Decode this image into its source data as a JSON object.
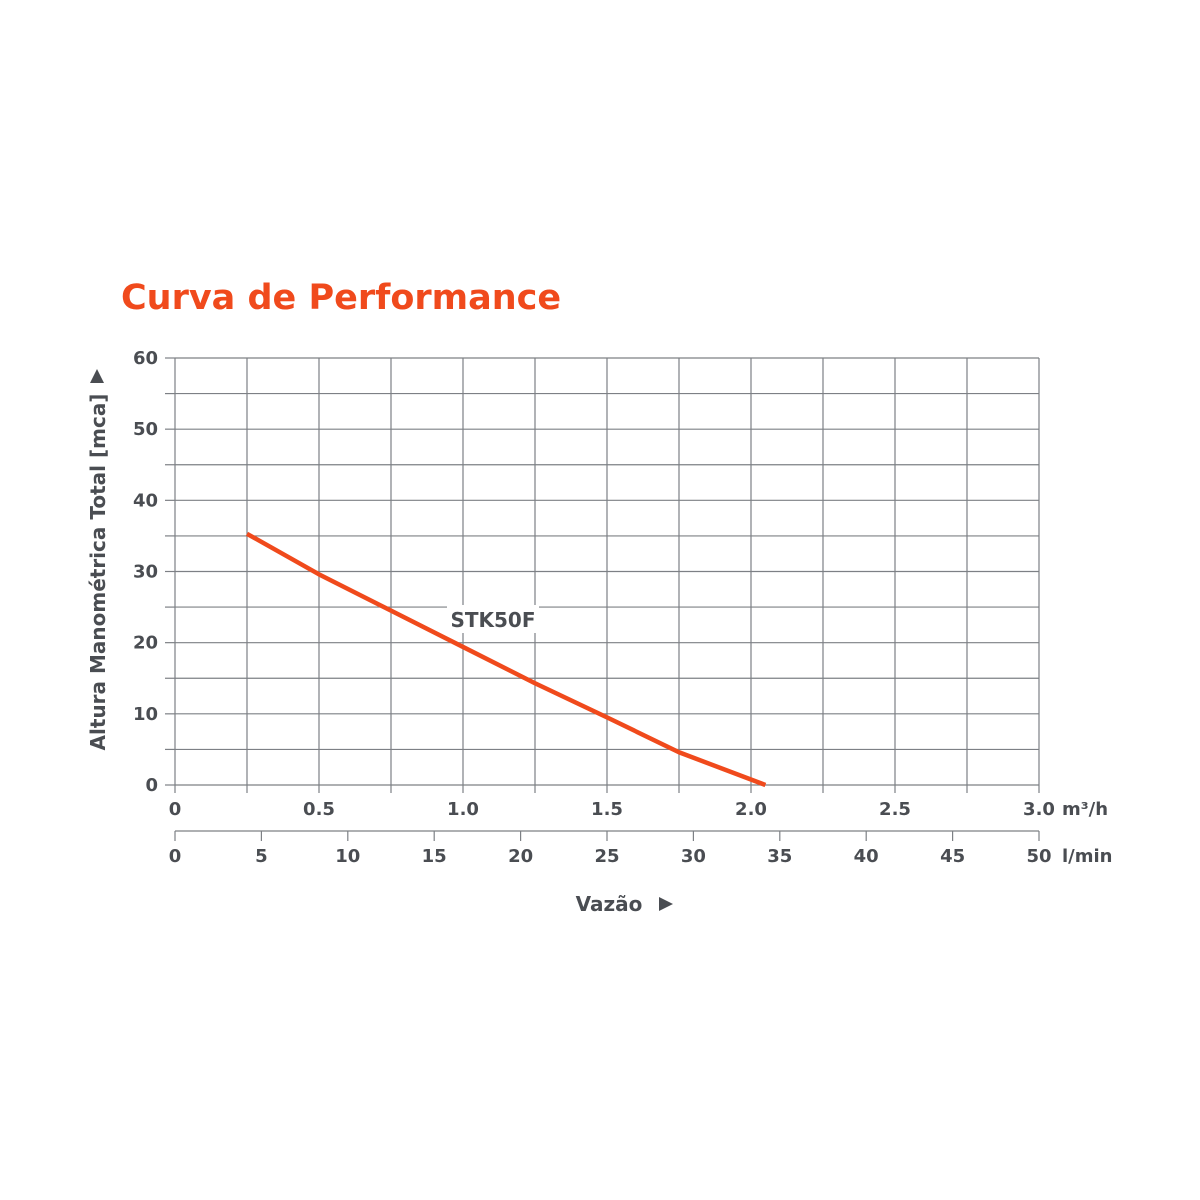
{
  "chart_data": {
    "type": "line",
    "title": "Curva de Performance",
    "ylabel": "Altura Manométrica Total [mca]",
    "xlabel": "Vazão",
    "ylim": [
      0,
      60
    ],
    "yticks": [
      "0",
      "10",
      "20",
      "30",
      "40",
      "50",
      "60"
    ],
    "x_primary": {
      "unit": "m³/h",
      "xlim": [
        0,
        3.0
      ],
      "ticks": [
        "0",
        "0.5",
        "1.0",
        "1.5",
        "2.0",
        "2.5",
        "3.0"
      ]
    },
    "x_secondary": {
      "unit": "l/min",
      "xlim": [
        0,
        50
      ],
      "ticks": [
        "0",
        "5",
        "10",
        "15",
        "20",
        "25",
        "30",
        "35",
        "40",
        "45",
        "50"
      ]
    },
    "grid": true,
    "series": [
      {
        "name": "STK50F",
        "color": "#f04a1c",
        "x": [
          0.25,
          0.5,
          0.75,
          1.0,
          1.25,
          1.5,
          1.75,
          2.05
        ],
        "y": [
          35.3,
          29.6,
          24.5,
          19.4,
          14.3,
          9.5,
          4.6,
          0
        ]
      }
    ]
  },
  "colors": {
    "accent": "#f04a1c",
    "text": "#4a4d52",
    "grid": "#7d8085"
  }
}
